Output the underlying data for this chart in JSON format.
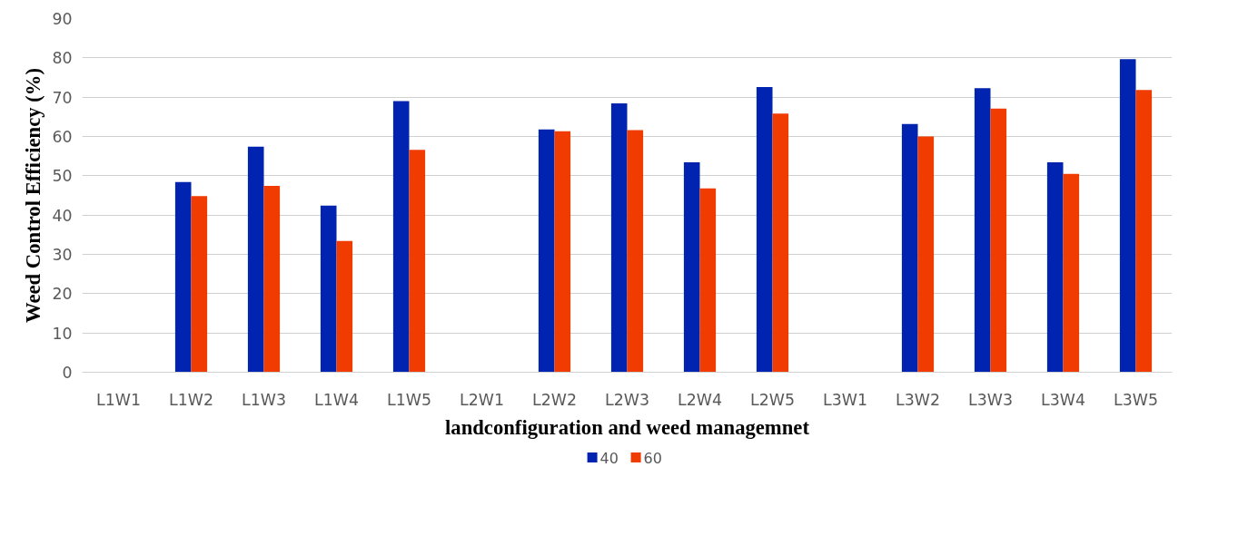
{
  "chart_data": {
    "type": "bar",
    "xlabel": "landconfiguration and weed managemnet",
    "ylabel": "Weed Control Efficiency (%)",
    "categories": [
      "L1W1",
      "L1W2",
      "L1W3",
      "L1W4",
      "L1W5",
      "L2W1",
      "L2W2",
      "L2W3",
      "L2W4",
      "L2W5",
      "L3W1",
      "L3W2",
      "L3W3",
      "L3W4",
      "L3W5"
    ],
    "series": [
      {
        "name": "40",
        "color": "#0023b0",
        "values": [
          0,
          48.4,
          57.4,
          42.4,
          69.0,
          0,
          61.8,
          68.4,
          53.4,
          72.6,
          0,
          63.2,
          72.3,
          53.4,
          79.7
        ]
      },
      {
        "name": "60",
        "color": "#f03c00",
        "values": [
          0,
          44.8,
          47.4,
          33.4,
          56.6,
          0,
          61.3,
          61.6,
          46.8,
          65.8,
          0,
          60.0,
          67.1,
          50.5,
          71.8
        ]
      }
    ],
    "ylim": [
      0,
      90
    ],
    "yticks": [
      0,
      10,
      20,
      30,
      40,
      50,
      60,
      70,
      80,
      90
    ],
    "grid": "y",
    "legend": "bottom"
  }
}
